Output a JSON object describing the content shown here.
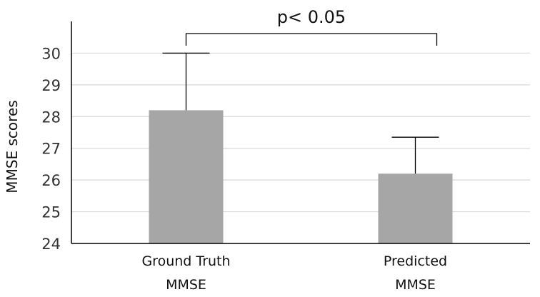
{
  "chart_data": {
    "type": "bar",
    "title": "",
    "xlabel": "",
    "ylabel": "MMSE scores",
    "ylim": [
      24,
      31
    ],
    "yticks": [
      "24",
      "25",
      "26",
      "27",
      "28",
      "29",
      "30"
    ],
    "grid": true,
    "categories": [
      [
        "Ground Truth",
        "MMSE"
      ],
      [
        "Predicted",
        "MMSE"
      ]
    ],
    "values": [
      28.2,
      26.2
    ],
    "error_upper": [
      1.8,
      1.15
    ],
    "annotation": "p< 0.05",
    "colors": {
      "bar": "#a6a6a6",
      "grid": "#d9d9d9",
      "axis": "#000000",
      "error": "#000000"
    }
  }
}
